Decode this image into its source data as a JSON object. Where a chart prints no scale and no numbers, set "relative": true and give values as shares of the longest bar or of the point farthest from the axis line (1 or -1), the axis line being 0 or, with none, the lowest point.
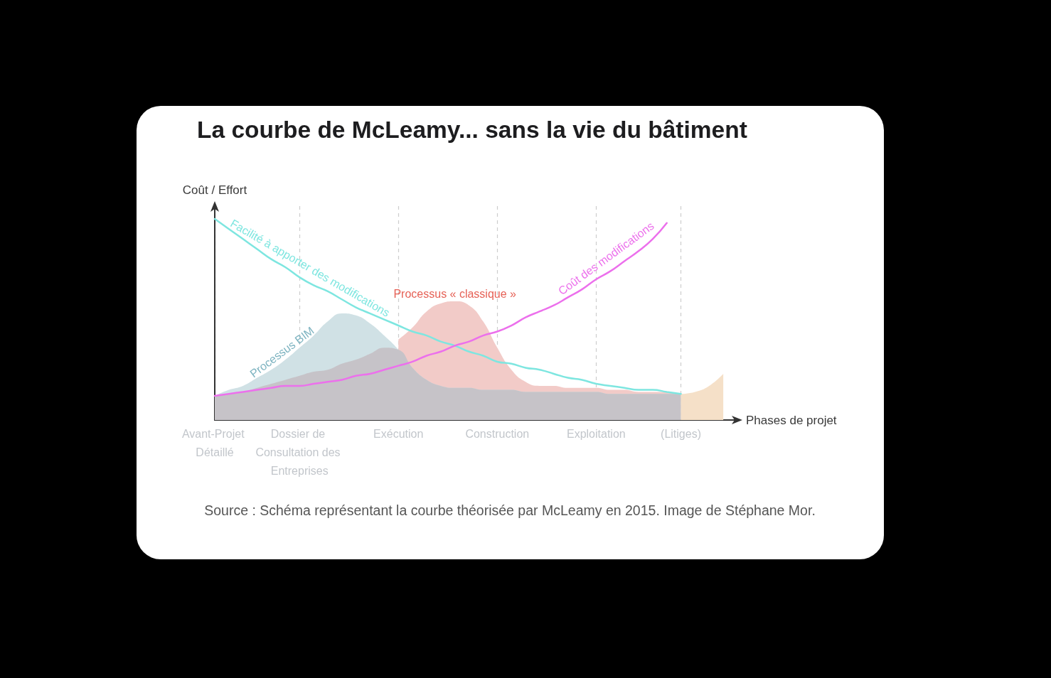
{
  "chart_data": {
    "type": "area",
    "title": "La courbe de McLeamy... sans la vie du bâtiment",
    "xlabel": "Phases de projet",
    "ylabel": "Coût / Effort",
    "annotations": [
      "Source : Schéma représentant la courbe théorisée par McLeamy en 2015. Image de Stéphane Mor."
    ],
    "relative": true,
    "grid": "x",
    "marker": "none",
    "categories": [
      "Avant-Projet Détaillé",
      null,
      null,
      null,
      null,
      null,
      "Dossier de Consultation des Entreprises",
      null,
      null,
      null,
      null,
      null,
      null,
      "Exécution",
      null,
      null,
      null,
      null,
      null,
      null,
      "Construction",
      null,
      null,
      null,
      null,
      null,
      null,
      "Exploitation",
      null,
      null,
      null,
      null,
      null,
      "(Litiges)",
      null,
      null,
      null
    ],
    "series": [
      {
        "name": "Facilité à apporter des modifications",
        "type": "line",
        "color": "#7ee6e0",
        "values": [
          1,
          0.95,
          0.9,
          0.85,
          0.8,
          0.76,
          0.71,
          0.67,
          0.64,
          0.6,
          0.56,
          0.53,
          0.5,
          0.47,
          0.44,
          0.42,
          0.39,
          0.37,
          0.34,
          0.32,
          0.29,
          0.28,
          0.26,
          0.25,
          0.23,
          0.21,
          0.2,
          0.18,
          0.17,
          0.16,
          0.15,
          0.15,
          0.14,
          0.13,
          null,
          null,
          null
        ]
      },
      {
        "name": "Coût des modifications",
        "type": "line",
        "color": "#ec70ec",
        "values": [
          0.12,
          0.13,
          0.14,
          0.15,
          0.16,
          0.17,
          0.17,
          0.18,
          0.19,
          0.2,
          0.22,
          0.23,
          0.25,
          0.27,
          0.29,
          0.32,
          0.34,
          0.37,
          0.39,
          0.42,
          0.44,
          0.47,
          0.51,
          0.54,
          0.57,
          0.61,
          0.65,
          0.7,
          0.74,
          0.79,
          0.84,
          0.9,
          0.98,
          null,
          null,
          null,
          null
        ]
      },
      {
        "name": "Processus « classique »",
        "color": "#f2cbc8",
        "values": [
          null,
          null,
          null,
          null,
          null,
          null,
          null,
          null,
          null,
          null,
          null,
          null,
          null,
          0.4,
          0.46,
          0.54,
          0.58,
          0.59,
          0.57,
          0.49,
          0.36,
          0.25,
          0.19,
          0.17,
          0.17,
          0.16,
          0.16,
          0.16,
          0.15,
          0.15,
          0.14,
          0.14,
          0.14,
          0.13,
          null,
          null,
          null
        ]
      },
      {
        "name": "Processus BIM",
        "color": "#d0e1e5",
        "values": [
          0.12,
          0.15,
          0.17,
          0.21,
          0.25,
          0.3,
          0.36,
          0.42,
          0.49,
          0.53,
          0.52,
          0.48,
          0.42,
          0.35,
          0.26,
          0.2,
          0.17,
          0.16,
          0.16,
          0.15,
          0.15,
          0.15,
          0.14,
          0.14,
          0.14,
          0.14,
          0.14,
          0.14,
          0.13,
          0.13,
          0.13,
          0.13,
          0.13,
          0.13,
          null,
          null,
          null
        ]
      },
      {
        "color": "#c6c3c8",
        "values": [
          0.12,
          0.13,
          0.14,
          0.16,
          0.18,
          0.2,
          0.22,
          0.24,
          0.25,
          0.28,
          0.3,
          0.33,
          0.36,
          0.35,
          0.26,
          0.2,
          0.17,
          0.16,
          0.16,
          0.15,
          0.15,
          0.15,
          0.14,
          0.14,
          0.14,
          0.14,
          0.14,
          0.14,
          0.13,
          0.13,
          0.13,
          0.13,
          0.13,
          0.13,
          null,
          null,
          null
        ]
      },
      {
        "color": "#f5e0c8",
        "values": [
          null,
          null,
          null,
          null,
          null,
          null,
          null,
          null,
          null,
          null,
          null,
          null,
          null,
          null,
          null,
          null,
          null,
          null,
          null,
          null,
          null,
          null,
          null,
          null,
          null,
          null,
          null,
          null,
          null,
          null,
          null,
          null,
          null,
          0.13,
          0.14,
          0.17,
          0.23
        ]
      }
    ]
  }
}
